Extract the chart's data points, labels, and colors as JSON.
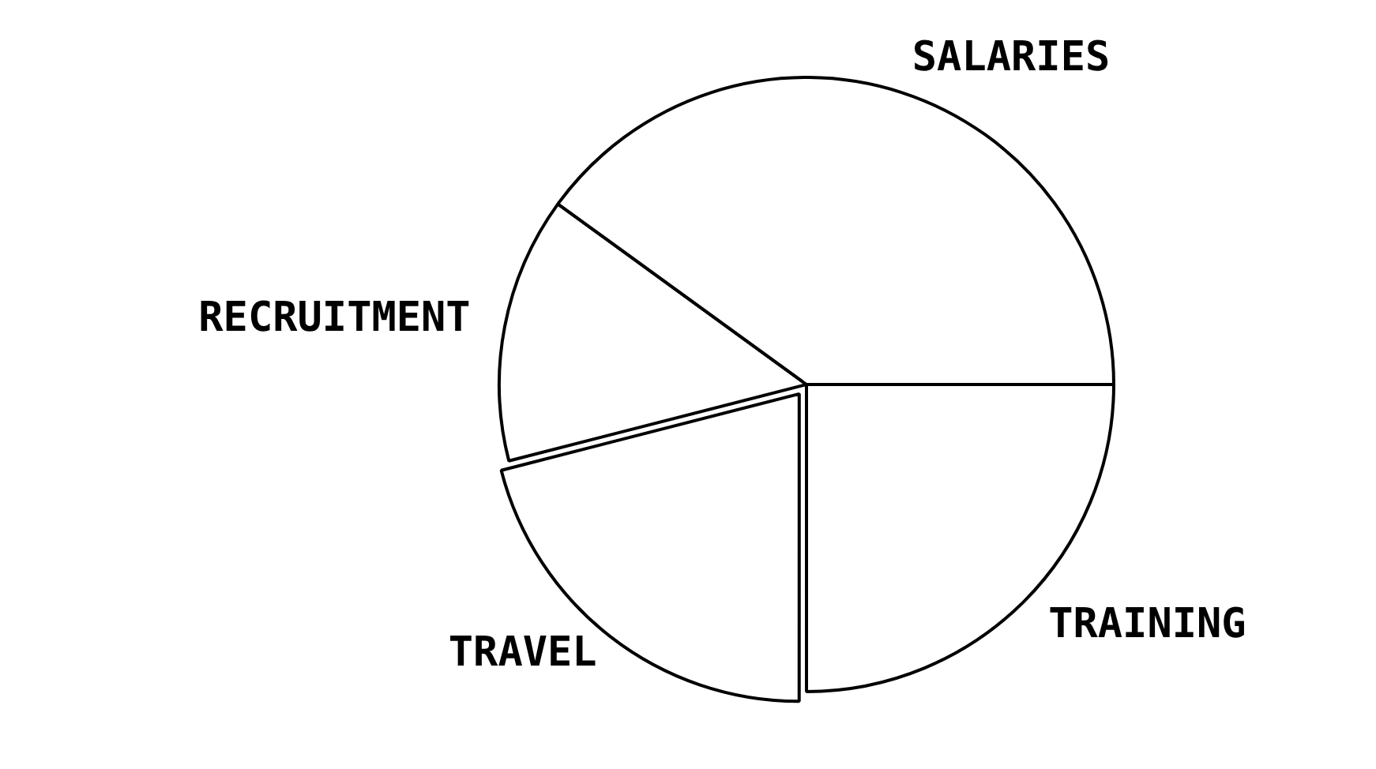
{
  "chart_data": {
    "type": "pie",
    "categories": [
      "TRAINING",
      "TRAVEL",
      "RECRUITMENT",
      "SALARIES"
    ],
    "values": [
      25,
      21,
      14,
      40
    ],
    "colors": [
      "#ffffff",
      "#ffffff",
      "#ffffff",
      "#ffffff"
    ],
    "legend": false
  }
}
